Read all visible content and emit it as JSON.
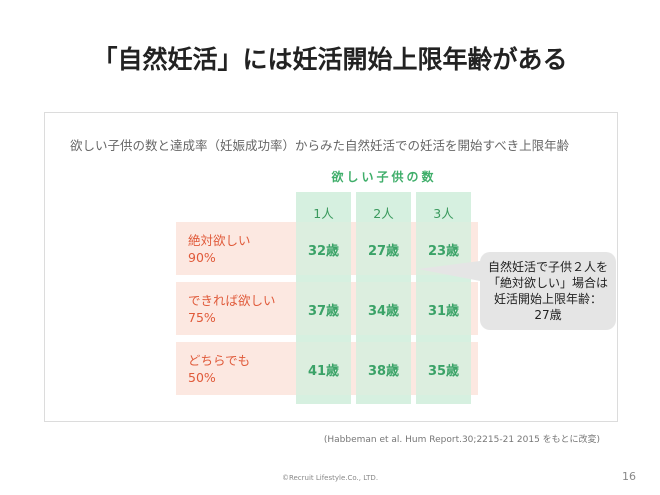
{
  "title": "「自然妊活」には妊活開始上限年齢がある",
  "subtitle": "欲しい子供の数と達成率（妊娠成功率）からみた自然妊活での妊活を開始すべき上限年齢",
  "want_header": "欲しい子供の数",
  "columns": [
    "1人",
    "2人",
    "3人"
  ],
  "rows": [
    {
      "label_line1": "絶対欲しい",
      "label_line2": "90%",
      "values": [
        "32歳",
        "27歳",
        "23歳"
      ]
    },
    {
      "label_line1": "できれば欲しい",
      "label_line2": "75%",
      "values": [
        "37歳",
        "34歳",
        "31歳"
      ]
    },
    {
      "label_line1": "どちらでも",
      "label_line2": "50%",
      "values": [
        "41歳",
        "38歳",
        "35歳"
      ]
    }
  ],
  "callout": {
    "line1": "自然妊活で子供２人を",
    "line2": "「絶対欲しい」場合は",
    "line3": "妊活開始上限年齢：",
    "line4": "27歳"
  },
  "source": "(Habbeman et al. Hum Report.30;2215-21 2015 をもとに改変)",
  "footer": "©Recruit Lifestyle.Co., LTD.",
  "page_number": "16",
  "colors": {
    "green": "#3aa267",
    "green_bg": "#d6f0e0",
    "red": "#e05a3a",
    "pink_bg": "#fbe4dc",
    "callout_bg": "#e5e5e5"
  }
}
